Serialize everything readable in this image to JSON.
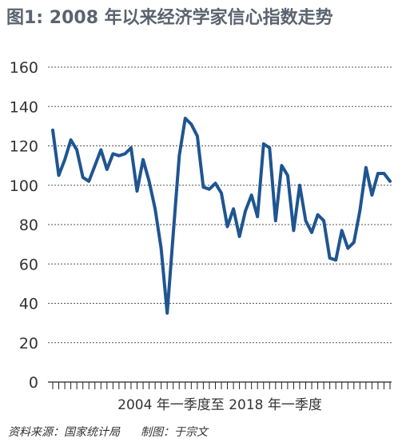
{
  "chart_data": {
    "type": "line",
    "title": "图1: 2008 年以来经济学家信心指数走势",
    "xlabel": "2004 年一季度至 2018 年一季度",
    "ylabel": "",
    "ylim": [
      0,
      160
    ],
    "yticks": [
      0,
      20,
      40,
      60,
      80,
      100,
      120,
      140,
      160
    ],
    "grid": true,
    "series": [
      {
        "values": [
          128,
          105,
          113,
          123,
          118,
          104,
          102,
          110,
          118,
          108,
          116,
          115,
          116,
          119,
          97,
          113,
          102,
          88,
          68,
          35,
          75,
          115,
          134,
          131,
          125,
          99,
          98,
          101,
          96,
          79,
          88,
          74,
          87,
          95,
          84,
          121,
          119,
          82,
          110,
          105,
          77,
          100,
          82,
          76,
          85,
          82,
          63,
          62,
          77,
          68,
          71,
          87,
          109,
          95,
          106,
          106,
          102
        ],
        "color": "#1f5591"
      }
    ]
  },
  "source": {
    "data_source": "资料来源：国家统计局",
    "credit": "制图：于宗文"
  }
}
